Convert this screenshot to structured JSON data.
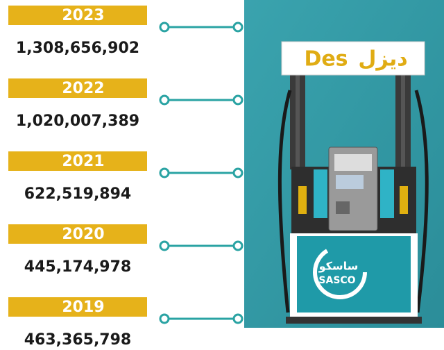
{
  "items": [
    {
      "year": "2023",
      "value": "1,308,656,902"
    },
    {
      "year": "2022",
      "value": "1,020,007,389"
    },
    {
      "year": "2021",
      "value": "622,519,894"
    },
    {
      "year": "2020",
      "value": "445,174,978"
    },
    {
      "year": "2019",
      "value": "463,365,798"
    }
  ],
  "pump": {
    "sign_latin": "Des",
    "sign_arabic": "ديزل",
    "logo_arabic": "ساسكو",
    "logo_latin": "SASCO"
  }
}
